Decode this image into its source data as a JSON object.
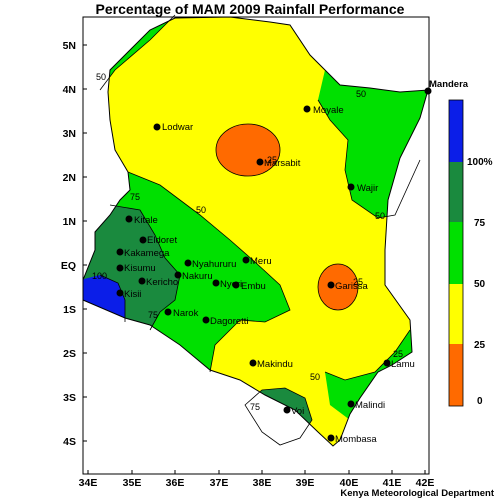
{
  "title": "Percentage of MAM 2009 Rainfall Performance",
  "credit": "Kenya Meteorological Department",
  "axes": {
    "x_ticks": [
      "34E",
      "35E",
      "36E",
      "37E",
      "38E",
      "39E",
      "40E",
      "41E",
      "42E"
    ],
    "y_ticks": [
      "5N",
      "4N",
      "3N",
      "2N",
      "1N",
      "EQ",
      "1S",
      "2S",
      "3S",
      "4S"
    ]
  },
  "legend": {
    "classes": [
      {
        "range": "above 100%",
        "color": "#0b1ee8"
      },
      {
        "range": "75-100%",
        "color": "#1a8a3e"
      },
      {
        "range": "50-75%",
        "color": "#00e000"
      },
      {
        "range": "25-50%",
        "color": "#ffff00"
      },
      {
        "range": "0-25%",
        "color": "#ff6a00"
      }
    ],
    "labels": [
      "100%",
      "75",
      "50",
      "25",
      "0"
    ]
  },
  "towns": [
    {
      "name": "Mandera"
    },
    {
      "name": "Moyale"
    },
    {
      "name": "Lodwar"
    },
    {
      "name": "Marsabit"
    },
    {
      "name": "Wajir"
    },
    {
      "name": "Kitale"
    },
    {
      "name": "Eldoret"
    },
    {
      "name": "Kakamega"
    },
    {
      "name": "Kisumu"
    },
    {
      "name": "Kisii"
    },
    {
      "name": "Kericho"
    },
    {
      "name": "Nakuru"
    },
    {
      "name": "Nyahururu"
    },
    {
      "name": "Meru"
    },
    {
      "name": "Nyeri"
    },
    {
      "name": "Embu"
    },
    {
      "name": "Garissa"
    },
    {
      "name": "Narok"
    },
    {
      "name": "Dagoretti"
    },
    {
      "name": "Makindu"
    },
    {
      "name": "Lamu"
    },
    {
      "name": "Malindi"
    },
    {
      "name": "Voi"
    },
    {
      "name": "Mombasa"
    }
  ],
  "contour_labels": [
    "50",
    "50",
    "50",
    "75",
    "75",
    "100",
    "50",
    "25",
    "25",
    "50",
    "75",
    "25"
  ]
}
